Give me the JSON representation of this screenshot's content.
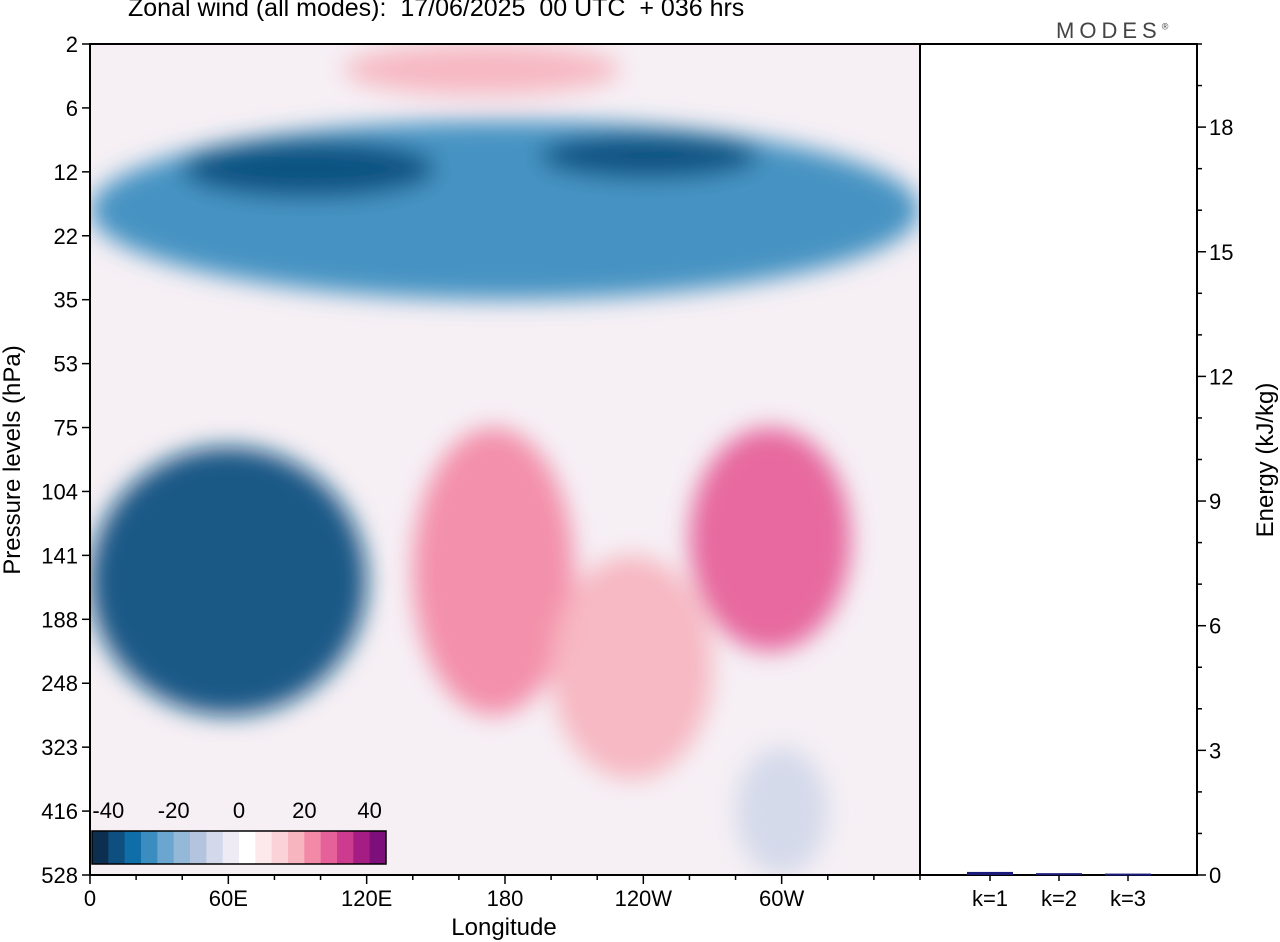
{
  "title": "Zonal wind (all modes):  17/06/2025  00 UTC  + 036 hrs",
  "brand": "MODES",
  "brand_mark": "®",
  "colors": {
    "scale": [
      "#0d2f4f",
      "#0f4f80",
      "#0f6ea8",
      "#3b8dc0",
      "#6aa6cf",
      "#94b8d8",
      "#b4c4df",
      "#d3d8ea",
      "#efebf5",
      "#ffffff",
      "#fde9ec",
      "#fad2d8",
      "#f7b5c0",
      "#f28aa7",
      "#e6619a",
      "#cc3b8e",
      "#a51d83",
      "#7c0f79",
      "#4e0a63"
    ],
    "bar": "#1a1a7a",
    "frame": "#000000"
  },
  "chart_data": [
    {
      "type": "heatmap",
      "title": "Zonal wind (all modes):  17/06/2025  00 UTC  + 036 hrs",
      "xlabel": "Longitude",
      "ylabel": "Pressure levels (hPa)",
      "x_ticks": [
        "0",
        "60E",
        "120E",
        "180",
        "120W",
        "60W"
      ],
      "x_tick_degrees": [
        0,
        60,
        120,
        180,
        240,
        300
      ],
      "xlim": [
        0,
        360
      ],
      "y_ticks": [
        "2",
        "6",
        "12",
        "22",
        "35",
        "53",
        "75",
        "104",
        "141",
        "188",
        "248",
        "323",
        "416",
        "528"
      ],
      "colorbar": {
        "ticks": [
          "-40",
          "-20",
          "0",
          "20",
          "40"
        ],
        "tick_values": [
          -40,
          -20,
          0,
          20,
          40
        ],
        "range": [
          -45,
          45
        ],
        "step": 5
      },
      "features": [
        {
          "name": "easterly jet upper",
          "lon": [
            0,
            360
          ],
          "level_index": [
            1.2,
            4.0
          ],
          "value": -30
        },
        {
          "name": "jet core A",
          "lon": [
            40,
            150
          ],
          "level_index": [
            1.5,
            2.4
          ],
          "value": -38
        },
        {
          "name": "jet core B",
          "lon": [
            195,
            290
          ],
          "level_index": [
            1.4,
            2.1
          ],
          "value": -40
        },
        {
          "name": "westerly top",
          "lon": [
            110,
            230
          ],
          "level_index": [
            0,
            0.8
          ],
          "value": 15
        },
        {
          "name": "easterly low-level core",
          "lon": [
            0,
            120
          ],
          "level_index": [
            6.3,
            10.5
          ],
          "value": -40
        },
        {
          "name": "westerly core 160E",
          "lon": [
            140,
            210
          ],
          "level_index": [
            6.0,
            10.5
          ],
          "value": 22
        },
        {
          "name": "westerly core 75W",
          "lon": [
            260,
            330
          ],
          "level_index": [
            6.0,
            9.5
          ],
          "value": 25
        },
        {
          "name": "westerly core 140W",
          "lon": [
            200,
            270
          ],
          "level_index": [
            8.0,
            11.5
          ],
          "value": 15
        },
        {
          "name": "easterly surface patch",
          "lon": [
            280,
            320
          ],
          "level_index": [
            11.0,
            13.0
          ],
          "value": -10
        }
      ]
    },
    {
      "type": "bar",
      "ylabel": "Energy (kJ/kg)",
      "categories": [
        "k=1",
        "k=2",
        "k=3"
      ],
      "values": [
        0.05,
        0.02,
        0.01
      ],
      "ylim": [
        0,
        20
      ],
      "y_ticks": [
        "0",
        "3",
        "6",
        "9",
        "12",
        "15",
        "18"
      ],
      "y_tick_values": [
        0,
        3,
        6,
        9,
        12,
        15,
        18
      ]
    }
  ]
}
